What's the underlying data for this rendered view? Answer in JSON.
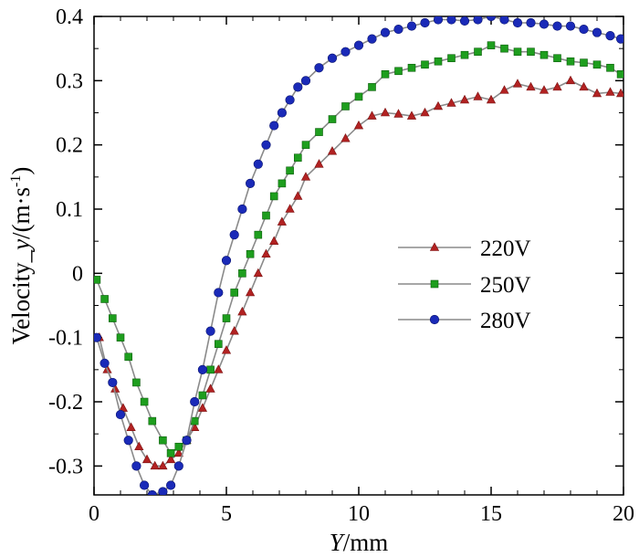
{
  "chart_data": {
    "type": "line",
    "xlabel_italic": "Y",
    "xlabel_rest": "/mm",
    "ylabel_prefix": "Velocity_",
    "ylabel_italic": "y",
    "ylabel_unit": "/(m·s",
    "ylabel_sup": "-1",
    "ylabel_close": ")",
    "xlim": [
      0,
      20
    ],
    "ylim": [
      -0.345,
      0.4
    ],
    "xticks": [
      0,
      5,
      10,
      15,
      20
    ],
    "xtick_labels": [
      "0",
      "5",
      "10",
      "15",
      "20"
    ],
    "yticks": [
      -0.3,
      -0.2,
      -0.1,
      0,
      0.1,
      0.2,
      0.3,
      0.4
    ],
    "ytick_labels": [
      "-0.3",
      "-0.2",
      "-0.1",
      "0",
      "0.1",
      "0.2",
      "0.3",
      "0.4"
    ],
    "legend_position": "center-right",
    "series": [
      {
        "name": "220V",
        "marker": "triangle",
        "color": "#b22222",
        "x": [
          0.2,
          0.5,
          0.8,
          1.1,
          1.4,
          1.7,
          2.0,
          2.3,
          2.6,
          2.9,
          3.2,
          3.5,
          3.8,
          4.1,
          4.4,
          4.7,
          5.0,
          5.3,
          5.6,
          5.9,
          6.2,
          6.5,
          6.8,
          7.1,
          7.4,
          7.7,
          8.0,
          8.5,
          9.0,
          9.5,
          10.0,
          10.5,
          11.0,
          11.5,
          12.0,
          12.5,
          13.0,
          13.5,
          14.0,
          14.5,
          15.0,
          15.5,
          16.0,
          16.5,
          17.0,
          17.5,
          18.0,
          18.5,
          19.0,
          19.5,
          19.9
        ],
        "y": [
          -0.1,
          -0.15,
          -0.18,
          -0.21,
          -0.24,
          -0.27,
          -0.29,
          -0.3,
          -0.3,
          -0.29,
          -0.28,
          -0.26,
          -0.24,
          -0.21,
          -0.18,
          -0.15,
          -0.12,
          -0.09,
          -0.06,
          -0.03,
          0.0,
          0.03,
          0.05,
          0.08,
          0.1,
          0.12,
          0.15,
          0.17,
          0.19,
          0.21,
          0.23,
          0.245,
          0.25,
          0.248,
          0.245,
          0.25,
          0.26,
          0.265,
          0.27,
          0.275,
          0.27,
          0.285,
          0.295,
          0.29,
          0.285,
          0.29,
          0.3,
          0.29,
          0.28,
          0.282,
          0.28
        ]
      },
      {
        "name": "250V",
        "marker": "square",
        "color": "#1e9e1e",
        "x": [
          0.1,
          0.4,
          0.7,
          1.0,
          1.3,
          1.6,
          1.9,
          2.2,
          2.6,
          2.9,
          3.2,
          3.5,
          3.8,
          4.1,
          4.4,
          4.7,
          5.0,
          5.3,
          5.6,
          5.9,
          6.2,
          6.5,
          6.8,
          7.1,
          7.4,
          7.7,
          8.0,
          8.5,
          9.0,
          9.5,
          10.0,
          10.5,
          11.0,
          11.5,
          12.0,
          12.5,
          13.0,
          13.5,
          14.0,
          14.5,
          15.0,
          15.5,
          16.0,
          16.5,
          17.0,
          17.5,
          18.0,
          18.5,
          19.0,
          19.5,
          19.9
        ],
        "y": [
          -0.01,
          -0.04,
          -0.07,
          -0.1,
          -0.13,
          -0.17,
          -0.2,
          -0.23,
          -0.26,
          -0.28,
          -0.27,
          -0.26,
          -0.23,
          -0.19,
          -0.15,
          -0.11,
          -0.07,
          -0.03,
          0.0,
          0.03,
          0.06,
          0.09,
          0.12,
          0.14,
          0.16,
          0.18,
          0.2,
          0.22,
          0.24,
          0.26,
          0.275,
          0.29,
          0.31,
          0.315,
          0.32,
          0.325,
          0.33,
          0.335,
          0.34,
          0.345,
          0.355,
          0.35,
          0.345,
          0.345,
          0.34,
          0.335,
          0.33,
          0.328,
          0.325,
          0.32,
          0.31
        ]
      },
      {
        "name": "280V",
        "marker": "circle",
        "color": "#1a2ab8",
        "x": [
          0.1,
          0.4,
          0.7,
          1.0,
          1.3,
          1.6,
          1.9,
          2.2,
          2.6,
          2.9,
          3.2,
          3.5,
          3.8,
          4.1,
          4.4,
          4.7,
          5.0,
          5.3,
          5.6,
          5.9,
          6.2,
          6.5,
          6.8,
          7.1,
          7.4,
          7.7,
          8.0,
          8.5,
          9.0,
          9.5,
          10.0,
          10.5,
          11.0,
          11.5,
          12.0,
          12.5,
          13.0,
          13.5,
          14.0,
          14.5,
          15.0,
          15.5,
          16.0,
          16.5,
          17.0,
          17.5,
          18.0,
          18.5,
          19.0,
          19.5,
          19.9
        ],
        "y": [
          -0.1,
          -0.14,
          -0.17,
          -0.22,
          -0.26,
          -0.3,
          -0.33,
          -0.345,
          -0.34,
          -0.33,
          -0.3,
          -0.26,
          -0.2,
          -0.15,
          -0.09,
          -0.03,
          0.02,
          0.06,
          0.1,
          0.14,
          0.17,
          0.2,
          0.23,
          0.25,
          0.27,
          0.29,
          0.3,
          0.32,
          0.335,
          0.345,
          0.355,
          0.365,
          0.375,
          0.38,
          0.385,
          0.39,
          0.395,
          0.395,
          0.393,
          0.395,
          0.4,
          0.395,
          0.39,
          0.39,
          0.388,
          0.385,
          0.385,
          0.38,
          0.375,
          0.37,
          0.365
        ]
      }
    ]
  }
}
